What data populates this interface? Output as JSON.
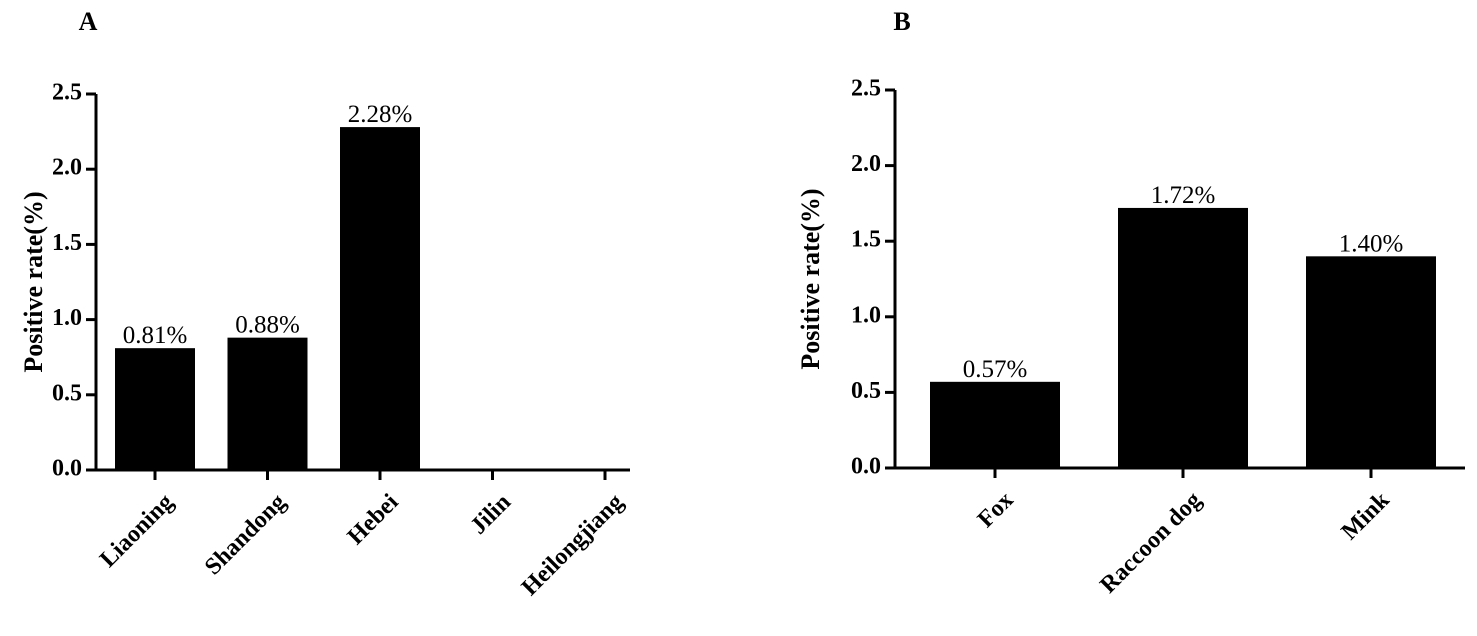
{
  "chart_data": [
    {
      "type": "bar",
      "panel": "A",
      "ylabel": "Positive rate(%)",
      "ylim": [
        0,
        2.5
      ],
      "yticks": [
        "0.0",
        "0.5",
        "1.0",
        "1.5",
        "2.0",
        "2.5"
      ],
      "categories": [
        "Liaoning",
        "Shandong",
        "Hebei",
        "Jilin",
        "Heilongjiang"
      ],
      "values": [
        0.81,
        0.88,
        2.28,
        0,
        0
      ],
      "data_labels": [
        "0.81%",
        "0.88%",
        "2.28%",
        "",
        ""
      ],
      "bar_color": "#000000",
      "grid": false
    },
    {
      "type": "bar",
      "panel": "B",
      "ylabel": "Positive rate(%)",
      "ylim": [
        0,
        2.5
      ],
      "yticks": [
        "0.0",
        "0.5",
        "1.0",
        "1.5",
        "2.0",
        "2.5"
      ],
      "categories": [
        "Fox",
        "Raccoon dog",
        "Mink"
      ],
      "values": [
        0.57,
        1.72,
        1.4
      ],
      "data_labels": [
        "0.57%",
        "1.72%",
        "1.40%"
      ],
      "bar_color": "#000000",
      "grid": false
    }
  ]
}
